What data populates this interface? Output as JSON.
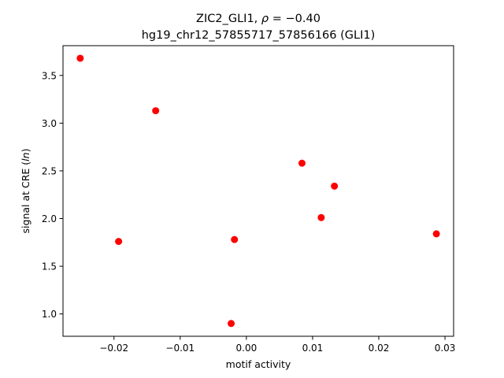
{
  "chart_data": {
    "type": "scatter",
    "title_line1_prefix": "ZIC2_GLI1, ",
    "title_line1_rho_symbol": "ρ",
    "title_line1_rho_value": " = −0.40",
    "title_line2": "hg19_chr12_57855717_57856166 (GLI1)",
    "xlabel": "motif activity",
    "ylabel_prefix": "signal at CRE (",
    "ylabel_italic": "ln",
    "ylabel_suffix": ")",
    "xlim": [
      -0.0277,
      0.0313
    ],
    "ylim": [
      0.766,
      3.812
    ],
    "xticks": [
      -0.02,
      -0.01,
      0.0,
      0.01,
      0.02,
      0.03
    ],
    "xtick_labels": [
      "−0.02",
      "−0.01",
      "0.00",
      "0.01",
      "0.02",
      "0.03"
    ],
    "yticks": [
      1.0,
      1.5,
      2.0,
      2.5,
      3.0,
      3.5
    ],
    "ytick_labels": [
      "1.0",
      "1.5",
      "2.0",
      "2.5",
      "3.0",
      "3.5"
    ],
    "grid": false,
    "marker_color": "#ff0000",
    "points": [
      {
        "x": -0.0251,
        "y": 3.68
      },
      {
        "x": -0.0137,
        "y": 3.13
      },
      {
        "x": -0.0193,
        "y": 1.76
      },
      {
        "x": -0.0018,
        "y": 1.78
      },
      {
        "x": -0.0023,
        "y": 0.9
      },
      {
        "x": 0.0084,
        "y": 2.58
      },
      {
        "x": 0.0133,
        "y": 2.34
      },
      {
        "x": 0.0113,
        "y": 2.01
      },
      {
        "x": 0.0287,
        "y": 1.84
      }
    ]
  }
}
